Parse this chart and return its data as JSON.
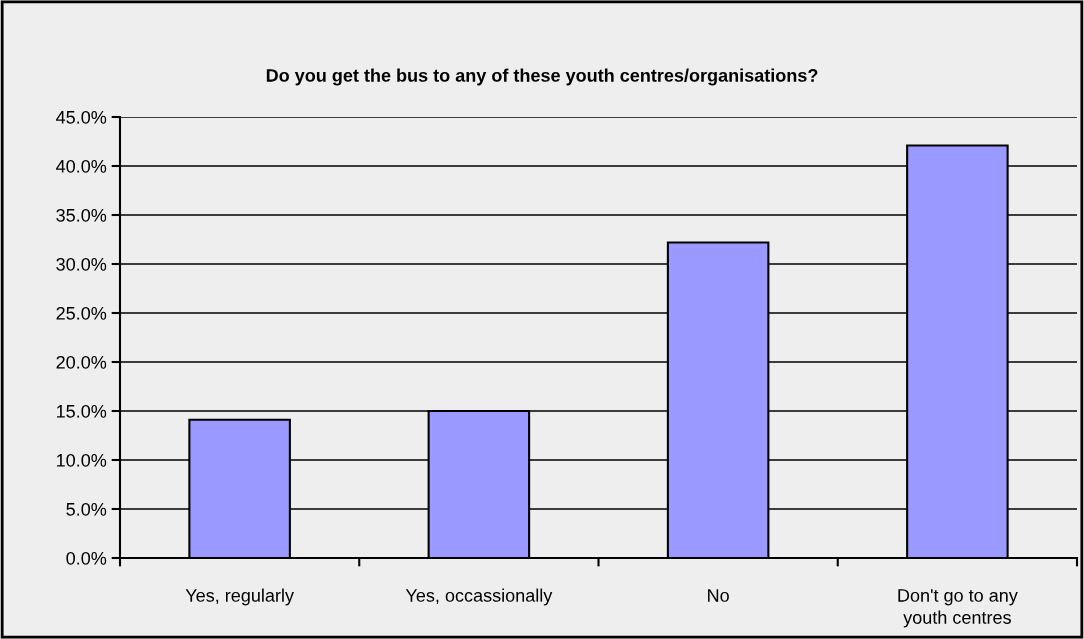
{
  "chart_data": {
    "type": "bar",
    "title": "Do you get the bus to any of these youth centres/organisations?",
    "categories": [
      "Yes, regularly",
      "Yes, occassionally",
      "No",
      "Don't go to any youth centres"
    ],
    "values": [
      14.1,
      15.0,
      32.2,
      42.1
    ],
    "color": "#9999ff",
    "ylim": [
      0,
      45
    ],
    "yticks": [
      {
        "value": 0,
        "label": "0.0%"
      },
      {
        "value": 5,
        "label": "5.0%"
      },
      {
        "value": 10,
        "label": "10.0%"
      },
      {
        "value": 15,
        "label": "15.0%"
      },
      {
        "value": 20,
        "label": "20.0%"
      },
      {
        "value": 25,
        "label": "25.0%"
      },
      {
        "value": 30,
        "label": "30.0%"
      },
      {
        "value": 35,
        "label": "35.0%"
      },
      {
        "value": 40,
        "label": "40.0%"
      },
      {
        "value": 45,
        "label": "45.0%"
      }
    ],
    "grid": "y",
    "legend": false
  }
}
